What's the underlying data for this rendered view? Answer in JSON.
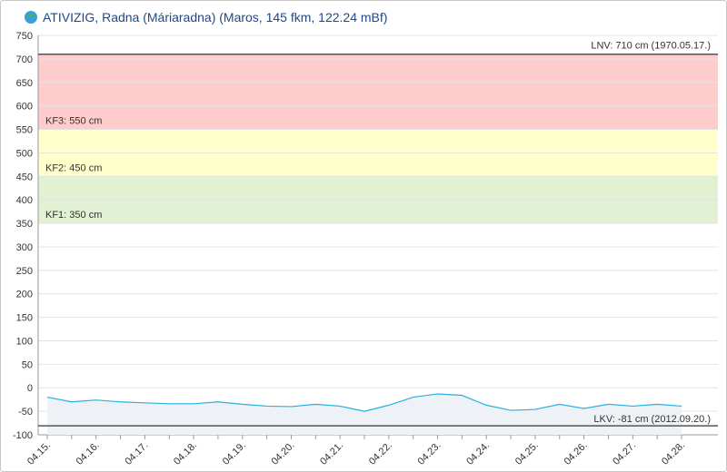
{
  "chart_data": {
    "type": "line",
    "title": "ATIVIZIG, Radna (Máriaradna) (Maros, 145 fkm, 122.24 mBf)",
    "categories": [
      "04.15.",
      null,
      "04.16.",
      null,
      "04.17.",
      null,
      "04.18.",
      null,
      "04.19.",
      null,
      "04.20.",
      null,
      "04.21.",
      null,
      "04.22.",
      null,
      "04.23.",
      null,
      "04.24.",
      null,
      "04.25.",
      null,
      "04.26.",
      null,
      "04.27.",
      null,
      "04.28."
    ],
    "series": [
      {
        "color": "#29b0e0",
        "fill": "#eef1f6",
        "values": [
          -20,
          -30,
          -26,
          -30,
          -32,
          -34,
          -34,
          -30,
          -35,
          -39,
          -40,
          -35,
          -39,
          -50,
          -37,
          -20,
          -13,
          -16,
          -37,
          -48,
          -46,
          -35,
          -44,
          -35,
          -39,
          -35,
          -39
        ]
      }
    ],
    "ylim": [
      -100,
      750
    ],
    "yticks": [
      -100,
      -50,
      0,
      50,
      100,
      150,
      200,
      250,
      300,
      350,
      400,
      450,
      500,
      550,
      600,
      650,
      700,
      750
    ],
    "grid": true,
    "bands": [
      {
        "label": "KF3: 550 cm",
        "from": 550,
        "to": 710,
        "color": "#ffcccc"
      },
      {
        "label": "KF2: 450 cm",
        "from": 450,
        "to": 550,
        "color": "#ffffcc"
      },
      {
        "label": "KF1: 350 cm",
        "from": 350,
        "to": 450,
        "color": "#e2f0d4"
      }
    ],
    "lines": [
      {
        "label": "LNV: 710 cm (1970.05.17.)",
        "value": 710,
        "color": "#555555"
      },
      {
        "label": "LKV: -81 cm (2012.09.20.)",
        "value": -81,
        "color": "#555555"
      }
    ]
  }
}
